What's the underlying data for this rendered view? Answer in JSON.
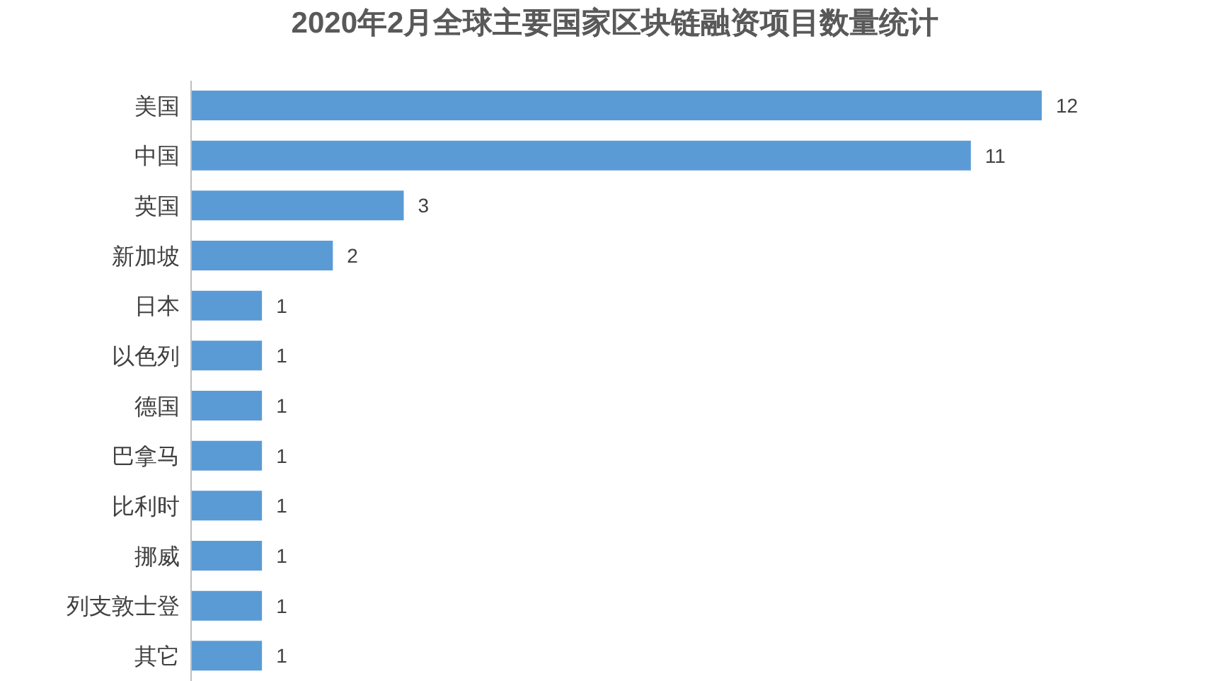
{
  "chart_data": {
    "type": "bar",
    "orientation": "horizontal",
    "title": "2020年2月全球主要国家区块链融资项目数量统计",
    "categories": [
      "美国",
      "中国",
      "英国",
      "新加坡",
      "日本",
      "以色列",
      "德国",
      "巴拿马",
      "比利时",
      "挪威",
      "列支敦士登",
      "其它"
    ],
    "values": [
      12,
      11,
      3,
      2,
      1,
      1,
      1,
      1,
      1,
      1,
      1,
      1
    ],
    "color": "#5b9bd5",
    "data_labels": true
  }
}
